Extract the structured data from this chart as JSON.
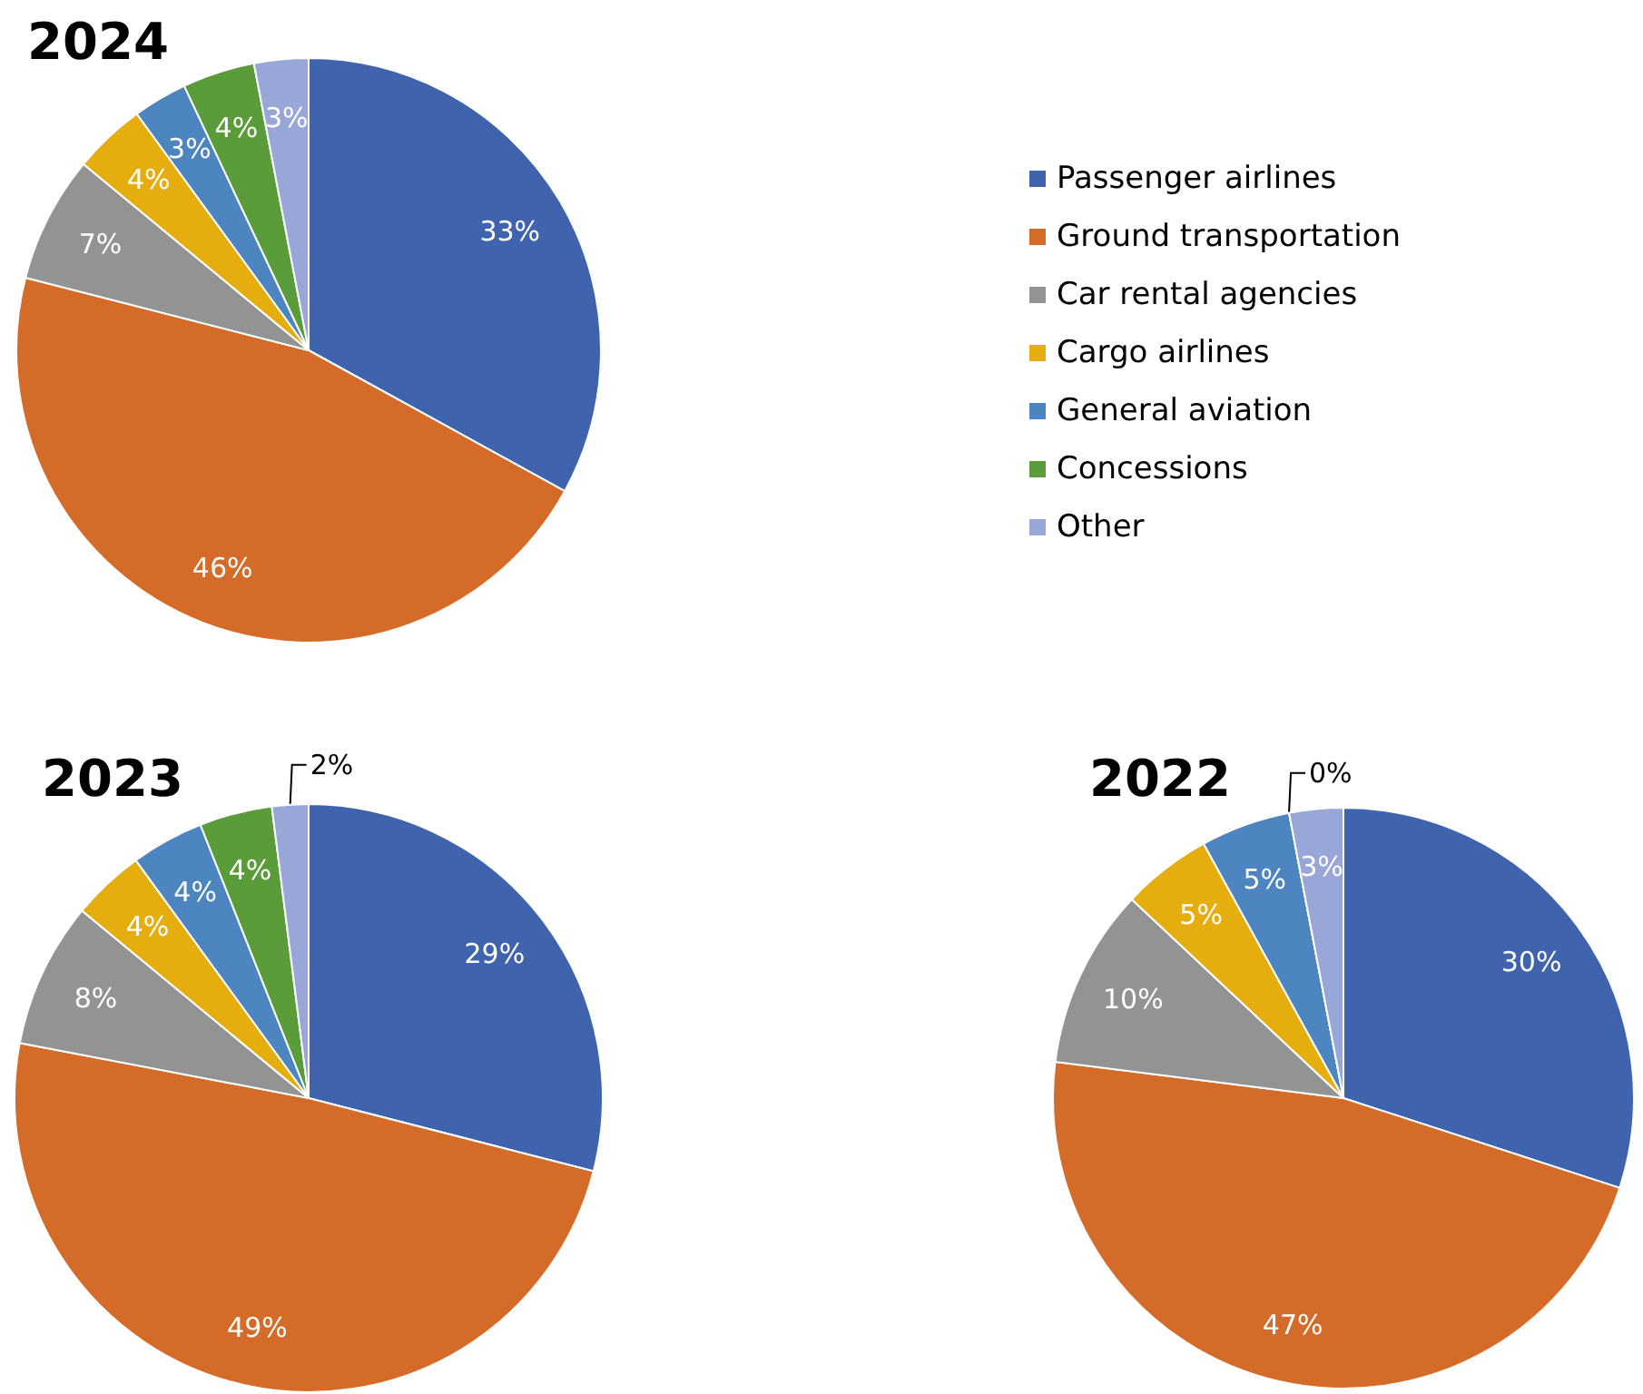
{
  "chart_data": [
    {
      "type": "pie",
      "title": "2024",
      "categories": [
        "Passenger airlines",
        "Ground transportation",
        "Car rental agencies",
        "Cargo airlines",
        "General aviation",
        "Concessions",
        "Other"
      ],
      "values": [
        33,
        46,
        7,
        4,
        3,
        4,
        3
      ],
      "value_labels": [
        "33%",
        "46%",
        "7%",
        "4%",
        "3%",
        "4%",
        "3%"
      ],
      "colors": [
        "#3f64ad",
        "#d46b28",
        "#939393",
        "#e5ad0e",
        "#4d85c1",
        "#5b9c3a",
        "#98a6d8"
      ],
      "legend": "right"
    },
    {
      "type": "pie",
      "title": "2023",
      "categories": [
        null,
        null,
        null,
        null,
        null,
        null,
        null
      ],
      "values": [
        29,
        49,
        8,
        4,
        4,
        4,
        2
      ],
      "value_labels": [
        "29%",
        "49%",
        "8%",
        "4%",
        "4%",
        "4%",
        "2%"
      ],
      "colors": [
        "#3f64ad",
        "#d46b28",
        "#939393",
        "#e5ad0e",
        "#4d85c1",
        "#5b9c3a",
        "#98a6d8"
      ]
    },
    {
      "type": "pie",
      "title": "2022",
      "categories": [
        null,
        null,
        null,
        null,
        null,
        null,
        null
      ],
      "values": [
        30,
        47,
        10,
        5,
        5,
        0,
        3
      ],
      "value_labels": [
        "30%",
        "47%",
        "10%",
        "5%",
        "5%",
        "0%",
        "3%"
      ],
      "colors": [
        "#3f64ad",
        "#d46b28",
        "#939393",
        "#e5ad0e",
        "#4d85c1",
        "#5b9c3a",
        "#98a6d8"
      ]
    }
  ]
}
